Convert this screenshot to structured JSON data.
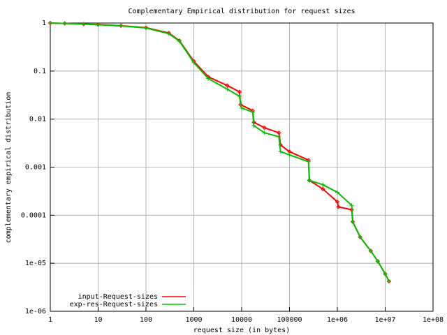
{
  "chart_data": {
    "type": "line",
    "title": "Complementary Empirical distribution for request sizes",
    "x_label": "request size (in bytes)",
    "y_label": "complementary empirical distribution",
    "log_x": true,
    "log_y": true,
    "grid": true,
    "legend": "bottom-left",
    "xlim": [
      1,
      100000000
    ],
    "ylim": [
      1e-06,
      1
    ],
    "xticks": [
      1,
      10,
      100,
      1000,
      10000,
      100000,
      {
        "value": 1000000,
        "label": "1e+06"
      },
      {
        "value": 10000000,
        "label": "1e+07"
      },
      {
        "value": 100000000,
        "label": "1e+08"
      }
    ],
    "yticks": [
      1,
      0.1,
      0.01,
      0.001,
      0.0001,
      {
        "value": 1e-05,
        "label": "1e-05"
      },
      {
        "value": 1e-06,
        "label": "1e-06"
      }
    ],
    "series": [
      {
        "name": "input-Request-sizes",
        "color": "#ff0000",
        "x": [
          1,
          2,
          5,
          10,
          30,
          100,
          300,
          500,
          1000,
          2000,
          5000,
          9000,
          9500,
          17000,
          18000,
          30000,
          60000,
          65000,
          100000,
          250000,
          260000,
          500000,
          1000000,
          1050000,
          2000000,
          2100000,
          3000000,
          5000000,
          7000000,
          10000000,
          12000000
        ],
        "values": [
          1,
          0.98,
          0.95,
          0.93,
          0.88,
          0.8,
          0.62,
          0.43,
          0.16,
          0.076,
          0.05,
          0.037,
          0.02,
          0.015,
          0.0086,
          0.0066,
          0.0052,
          0.0029,
          0.0021,
          0.0014,
          0.00053,
          0.00035,
          0.00019,
          0.000149,
          0.00013,
          7.3e-05,
          3.5e-05,
          1.8e-05,
          1.1e-05,
          6e-06,
          4.2e-06
        ]
      },
      {
        "name": "exp-res-Request-sizes",
        "color": "#00c000",
        "x": [
          1,
          2,
          5,
          10,
          30,
          100,
          300,
          500,
          1000,
          2000,
          5000,
          9000,
          10000,
          17000,
          18000,
          30000,
          60000,
          65000,
          100000,
          250000,
          260000,
          500000,
          1000000,
          2000000,
          2100000,
          3000000,
          5000000,
          7000000,
          10000000,
          12000000
        ],
        "values": [
          1,
          0.98,
          0.95,
          0.92,
          0.87,
          0.79,
          0.6,
          0.42,
          0.15,
          0.07,
          0.042,
          0.03,
          0.017,
          0.014,
          0.0073,
          0.0052,
          0.0043,
          0.0021,
          0.0018,
          0.0013,
          0.00053,
          0.00043,
          0.0003,
          0.00016,
          7.3e-05,
          3.5e-05,
          1.8e-05,
          1.1e-05,
          6e-06,
          4.2e-06
        ]
      }
    ]
  }
}
